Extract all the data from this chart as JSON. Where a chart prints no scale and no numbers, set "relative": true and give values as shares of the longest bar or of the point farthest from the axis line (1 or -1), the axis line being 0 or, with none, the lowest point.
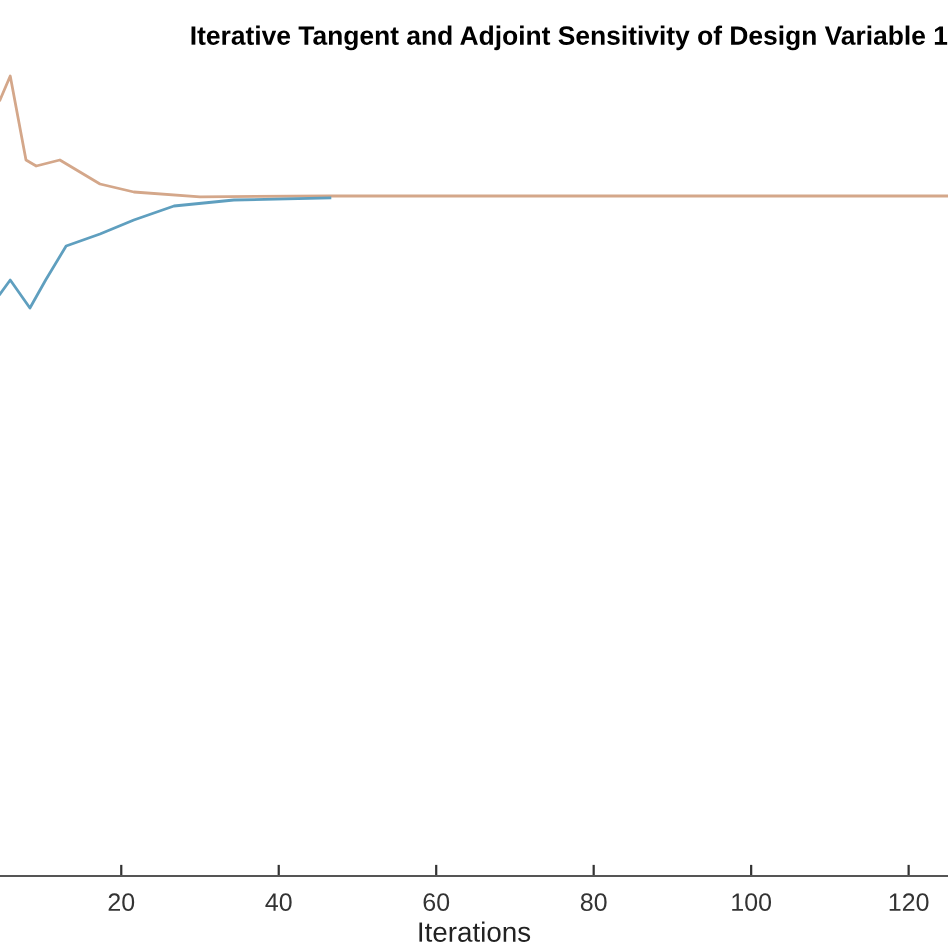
{
  "chart_data": {
    "type": "line",
    "title": "Iterative Tangent and Adjoint Sensitivity of Design Variable 1",
    "xlabel": "Iterations",
    "relative": true,
    "xlim": [
      4.6,
      125
    ],
    "xticks": [
      20,
      40,
      60,
      80,
      100,
      120
    ],
    "grid": false,
    "marker": "none",
    "line_style": "solid",
    "series": [
      {
        "color": "#d4a78a",
        "x": [
          4.6,
          5.9,
          7.9,
          9.2,
          12.2,
          17.3,
          21.6,
          30,
          46.5,
          125
        ],
        "values": [
          0.97,
          1.0,
          0.895,
          0.8875,
          0.895,
          0.865,
          0.855,
          0.849,
          0.85,
          0.85
        ]
      },
      {
        "color": "#5f9fbf",
        "x": [
          4.6,
          5.9,
          8.4,
          10.4,
          13,
          17.3,
          21.6,
          26.7,
          34.3,
          46.5
        ],
        "values": [
          0.7275,
          0.745,
          0.71,
          0.745,
          0.7875,
          0.8025,
          0.82,
          0.8375,
          0.845,
          0.8475
        ]
      }
    ]
  }
}
